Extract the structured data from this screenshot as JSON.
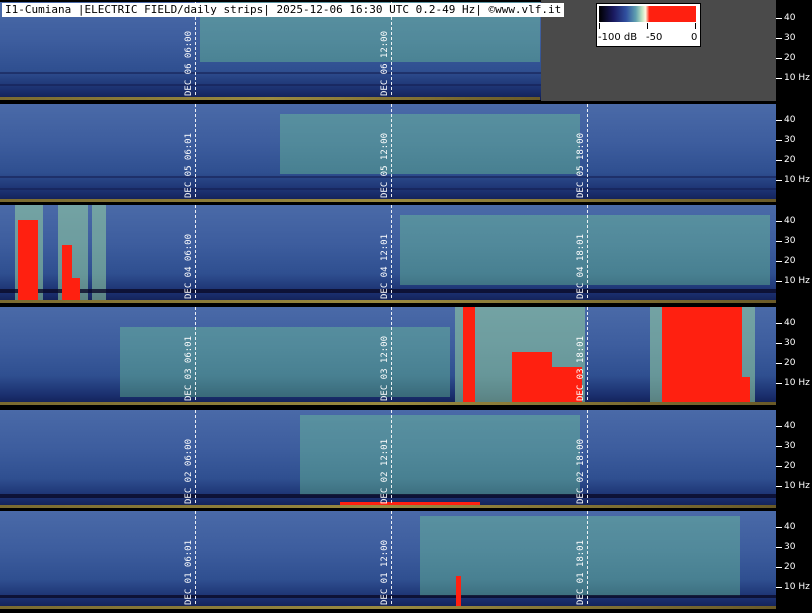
{
  "header": {
    "title": "I1-Cumiana |ELECTRIC FIELD/daily strips| 2025-12-06 16:30 UTC 0.2-49 Hz| ©www.vlf.it"
  },
  "legend": {
    "labels": [
      "-100 dB",
      "-50",
      "0"
    ],
    "colors": [
      "#000000",
      "#3050a0",
      "#b8e0c0",
      "#ff2010"
    ]
  },
  "axis": {
    "ticks": [
      "40",
      "30",
      "20",
      "10 Hz"
    ]
  },
  "strips": [
    {
      "labels": [
        "DEC 06  06:00",
        "DEC 06  12:00"
      ]
    },
    {
      "labels": [
        "DEC 05  06:01",
        "DEC 05  12:00",
        "DEC 05  18:00"
      ]
    },
    {
      "labels": [
        "DEC 04  06:00",
        "DEC 04  12:01",
        "DEC 04  18:01"
      ]
    },
    {
      "labels": [
        "DEC 03  06:01",
        "DEC 03  12:00",
        "DEC 03  18:01"
      ]
    },
    {
      "labels": [
        "DEC 02  06:00",
        "DEC 02  12:01",
        "DEC 02  18:00"
      ]
    },
    {
      "labels": [
        "DEC 01  06:01",
        "DEC 01  12:00",
        "DEC 01  18:01"
      ]
    }
  ]
}
